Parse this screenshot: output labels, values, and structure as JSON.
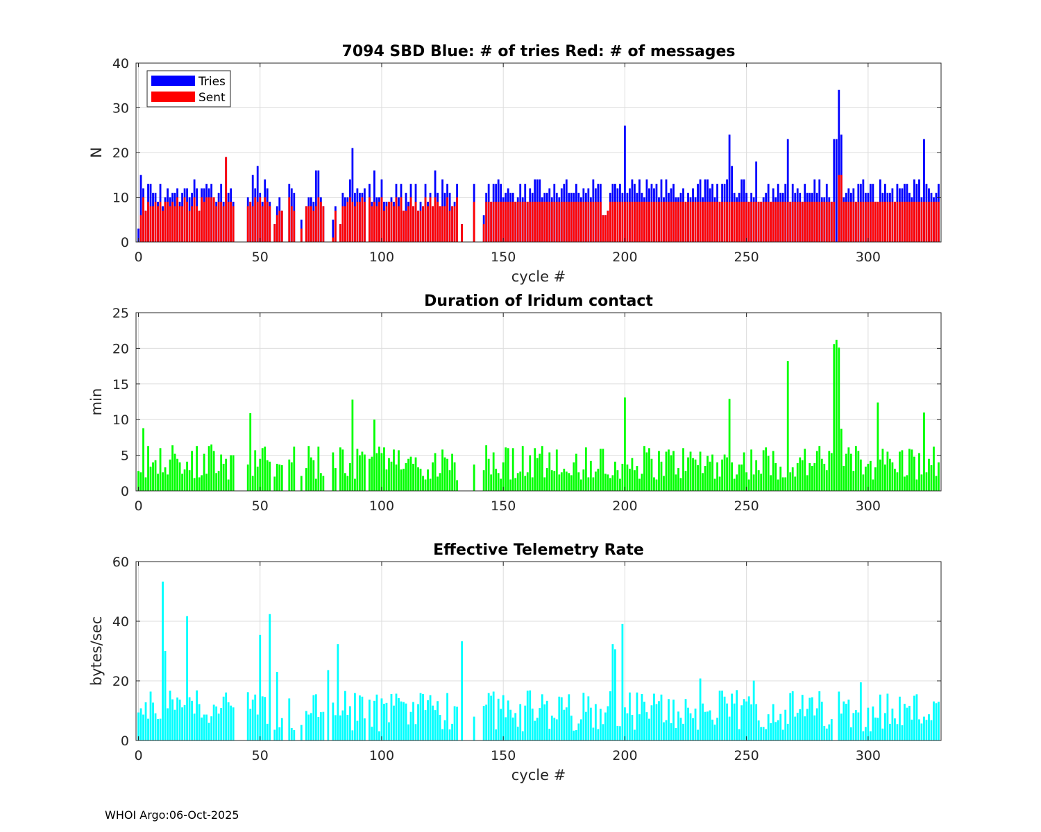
{
  "footer": "WHOI Argo:06-Oct-2025",
  "colors": {
    "tries": "#0000ff",
    "sent": "#ff0000",
    "duration": "#00ff00",
    "rate": "#00ffff",
    "grid": "#dcdcdc",
    "axis": "#262626"
  },
  "chart_data": [
    {
      "type": "bar",
      "title": "7094 SBD  Blue: # of tries   Red: # of messages",
      "xlabel": "cycle #",
      "ylabel": "N",
      "xlim": [
        -1,
        330
      ],
      "ylim": [
        0,
        40
      ],
      "xticks": [
        "0",
        "50",
        "100",
        "150",
        "200",
        "250",
        "300"
      ],
      "yticks": [
        "0",
        "10",
        "20",
        "30",
        "40"
      ],
      "legend": {
        "placement": "top-left",
        "entries": [
          "Tries",
          "Sent"
        ]
      },
      "series": [
        {
          "name": "Tries",
          "color": "#0000ff",
          "x_start": 0,
          "values": [
            3,
            15,
            12,
            10,
            7,
            13,
            8,
            7,
            11,
            7,
            10,
            10,
            9,
            9,
            9,
            9,
            10,
            11,
            10,
            9,
            8,
            11,
            14,
            9,
            10,
            9,
            9,
            8,
            9,
            12,
            10,
            9,
            11,
            9,
            12,
            15,
            10,
            19,
            9,
            11,
            11,
            9,
            0,
            0,
            0,
            0,
            0,
            0,
            0,
            0,
            0,
            0,
            0,
            7,
            5,
            9,
            10,
            15,
            9,
            17,
            9,
            11,
            14,
            12,
            9,
            11,
            9,
            6,
            0,
            4,
            7,
            8,
            0,
            9,
            12,
            10,
            0,
            0,
            0,
            0,
            0,
            0,
            5,
            10,
            9,
            9,
            9,
            15,
            16,
            16,
            10,
            9,
            0,
            0,
            0,
            0,
            0,
            5,
            9,
            10,
            0,
            4,
            8,
            14,
            9,
            10,
            9,
            9,
            10,
            21,
            9,
            11,
            11,
            9,
            9,
            9,
            9,
            14,
            16,
            12,
            9,
            9,
            13,
            10,
            9,
            9,
            9,
            16,
            11,
            10,
            10,
            10,
            10,
            10,
            11,
            10,
            12,
            9,
            13,
            11,
            9,
            16,
            12,
            10,
            10,
            11,
            14,
            9,
            10,
            0,
            0,
            0,
            0,
            0,
            4,
            6,
            0,
            0,
            0,
            0,
            0,
            0,
            0,
            0,
            0,
            0,
            0,
            0,
            12,
            13
          ],
          "values_alt": []
        },
        {
          "name": "Sent",
          "color": "#ff0000",
          "x_start": 0,
          "values": []
        }
      ]
    },
    {
      "type": "bar",
      "title": "Duration of Iridum contact",
      "xlabel": "",
      "ylabel": "min",
      "xlim": [
        -1,
        330
      ],
      "ylim": [
        0,
        25
      ],
      "xticks": [
        "0",
        "50",
        "100",
        "150",
        "200",
        "250",
        "300"
      ],
      "yticks": [
        "0",
        "5",
        "10",
        "15",
        "20",
        "25"
      ],
      "series": [
        {
          "name": "Duration",
          "color": "#00ff00",
          "x_start": 0,
          "values": []
        }
      ]
    },
    {
      "type": "bar",
      "title": "Effective Telemetry Rate",
      "xlabel": "cycle #",
      "ylabel": "bytes/sec",
      "xlim": [
        -1,
        330
      ],
      "ylim": [
        0,
        60
      ],
      "xticks": [
        "0",
        "50",
        "100",
        "150",
        "200",
        "250",
        "300"
      ],
      "yticks": [
        "0",
        "20",
        "40",
        "60"
      ],
      "series": [
        {
          "name": "Rate",
          "color": "#00ffff",
          "x_start": 0,
          "values": []
        }
      ]
    }
  ]
}
